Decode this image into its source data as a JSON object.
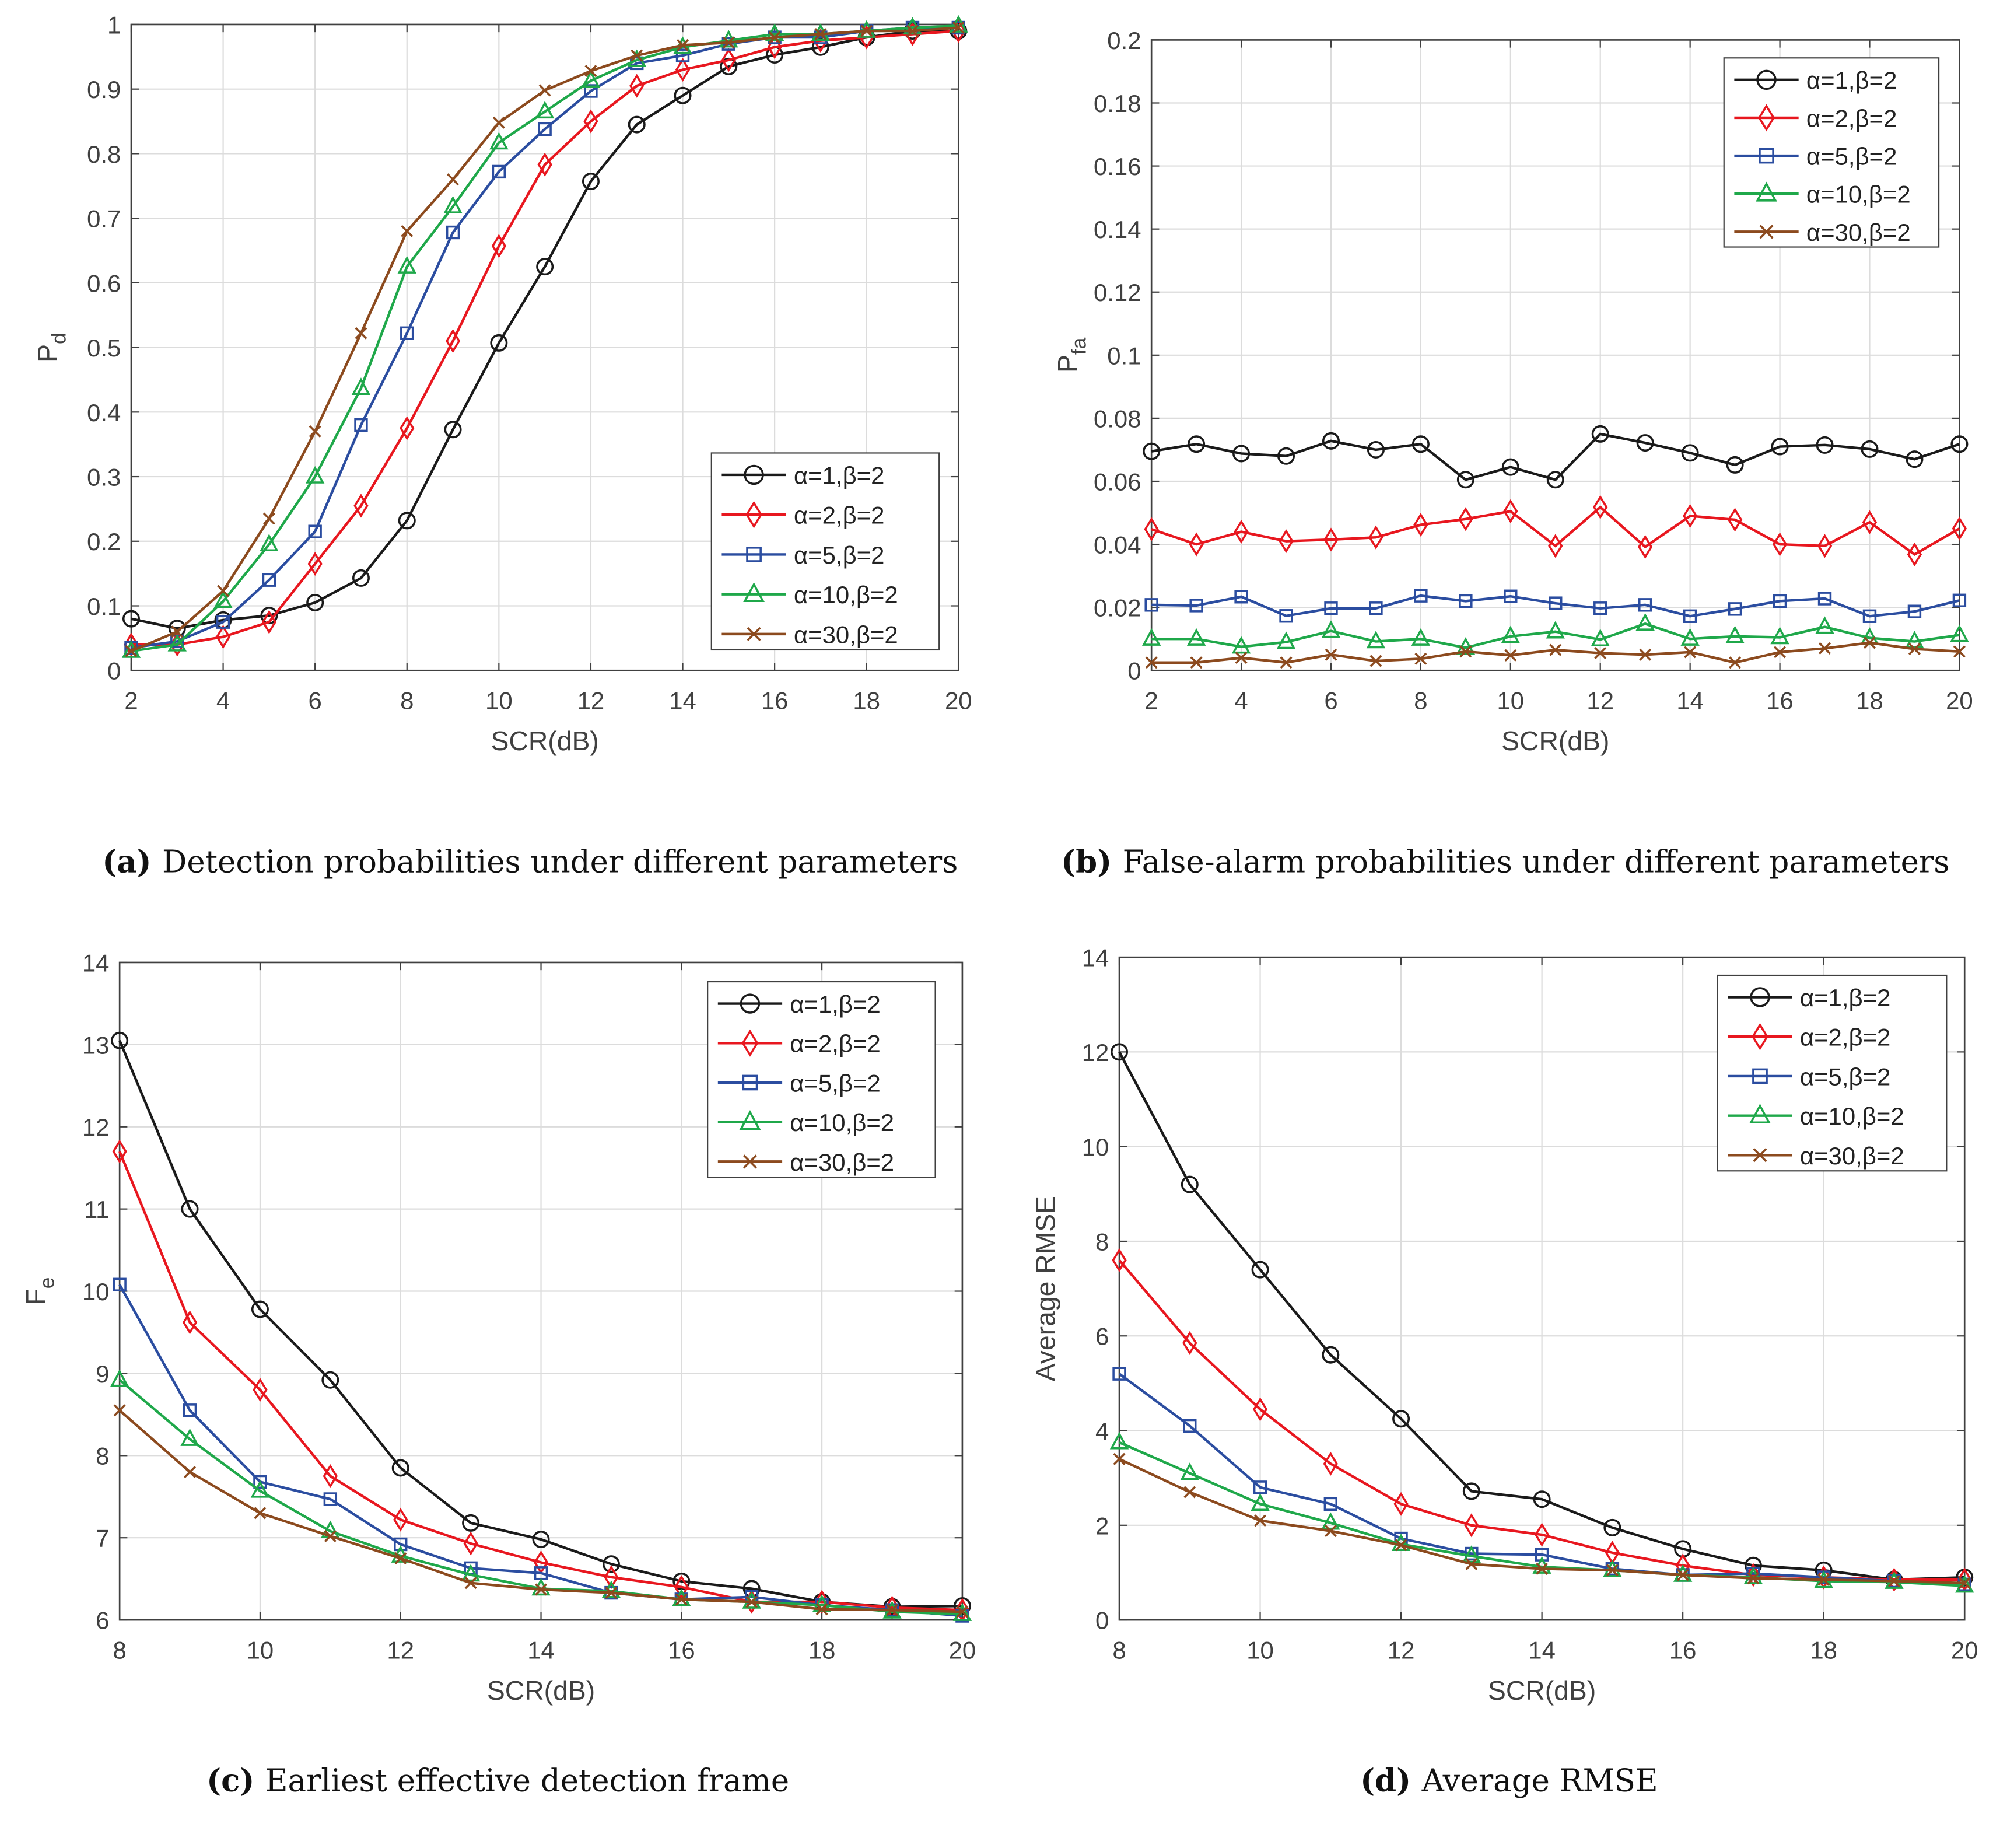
{
  "series_style": [
    {
      "name": "α=1,β=2",
      "color": "#1a1a1a",
      "marker": "circle"
    },
    {
      "name": "α=2,β=2",
      "color": "#e8171f",
      "marker": "diamond"
    },
    {
      "name": "α=5,β=2",
      "color": "#2b4da0",
      "marker": "square"
    },
    {
      "name": "α=10,β=2",
      "color": "#1fa84a",
      "marker": "triangle"
    },
    {
      "name": "α=30,β=2",
      "color": "#8c4a1e",
      "marker": "x"
    }
  ],
  "chart_data": [
    {
      "id": "a",
      "type": "line",
      "caption_label": "(a)",
      "caption": "Detection probabilities under different parameters",
      "xlabel": "SCR(dB)",
      "ylabel": "P",
      "ylabel_sub": "d",
      "xlim": [
        2,
        20
      ],
      "ylim": [
        0,
        1
      ],
      "grid": true,
      "legend": "bottom-right",
      "xticks": [
        "2",
        "4",
        "6",
        "8",
        "10",
        "12",
        "14",
        "16",
        "18",
        "20"
      ],
      "yticks": [
        "0",
        "0.1",
        "0.2",
        "0.3",
        "0.4",
        "0.5",
        "0.6",
        "0.7",
        "0.8",
        "0.9",
        "1"
      ],
      "x": [
        2,
        3,
        4,
        5,
        6,
        7,
        8,
        9,
        10,
        11,
        12,
        13,
        14,
        15,
        16,
        17,
        18,
        19,
        20
      ],
      "series": [
        {
          "name": "α=1,β=2",
          "values": [
            0.08,
            0.065,
            0.078,
            0.085,
            0.105,
            0.143,
            0.232,
            0.373,
            0.507,
            0.625,
            0.757,
            0.845,
            0.89,
            0.935,
            0.953,
            0.965,
            0.98,
            0.99,
            0.99
          ]
        },
        {
          "name": "α=2,β=2",
          "values": [
            0.04,
            0.04,
            0.052,
            0.075,
            0.165,
            0.255,
            0.375,
            0.51,
            0.657,
            0.783,
            0.85,
            0.905,
            0.93,
            0.945,
            0.965,
            0.975,
            0.98,
            0.985,
            0.99
          ]
        },
        {
          "name": "α=5,β=2",
          "values": [
            0.035,
            0.045,
            0.075,
            0.14,
            0.215,
            0.38,
            0.522,
            0.678,
            0.772,
            0.838,
            0.897,
            0.94,
            0.952,
            0.97,
            0.98,
            0.98,
            0.99,
            0.995,
            0.995
          ]
        },
        {
          "name": "α=10,β=2",
          "values": [
            0.03,
            0.04,
            0.107,
            0.195,
            0.3,
            0.437,
            0.625,
            0.718,
            0.817,
            0.865,
            0.913,
            0.945,
            0.965,
            0.975,
            0.985,
            0.985,
            0.99,
            0.995,
            0.998
          ]
        },
        {
          "name": "α=30,β=2",
          "values": [
            0.03,
            0.06,
            0.123,
            0.235,
            0.37,
            0.522,
            0.68,
            0.76,
            0.848,
            0.898,
            0.928,
            0.952,
            0.968,
            0.972,
            0.98,
            0.985,
            0.99,
            0.99,
            0.995
          ]
        }
      ]
    },
    {
      "id": "b",
      "type": "line",
      "caption_label": "(b)",
      "caption": "False-alarm probabilities under different parameters",
      "xlabel": "SCR(dB)",
      "ylabel": "P",
      "ylabel_sub": "fa",
      "xlim": [
        2,
        20
      ],
      "ylim": [
        0,
        0.2
      ],
      "grid": true,
      "legend": "top-right",
      "xticks": [
        "2",
        "4",
        "6",
        "8",
        "10",
        "12",
        "14",
        "16",
        "18",
        "20"
      ],
      "yticks": [
        "0",
        "0.02",
        "0.04",
        "0.06",
        "0.08",
        "0.1",
        "0.12",
        "0.14",
        "0.16",
        "0.18",
        "0.2"
      ],
      "x": [
        2,
        3,
        4,
        5,
        6,
        7,
        8,
        9,
        10,
        11,
        12,
        13,
        14,
        15,
        16,
        17,
        18,
        19,
        20
      ],
      "series": [
        {
          "name": "α=1,β=2",
          "values": [
            0.0695,
            0.0718,
            0.0688,
            0.068,
            0.0728,
            0.07,
            0.0718,
            0.0605,
            0.0645,
            0.0605,
            0.075,
            0.0722,
            0.069,
            0.0652,
            0.071,
            0.0715,
            0.0702,
            0.067,
            0.0718
          ]
        },
        {
          "name": "α=2,β=2",
          "values": [
            0.0448,
            0.04,
            0.044,
            0.041,
            0.0415,
            0.0422,
            0.0462,
            0.048,
            0.0505,
            0.0395,
            0.0518,
            0.0392,
            0.049,
            0.0478,
            0.04,
            0.0395,
            0.047,
            0.0368,
            0.045
          ]
        },
        {
          "name": "α=5,β=2",
          "values": [
            0.0208,
            0.0206,
            0.0234,
            0.0173,
            0.0197,
            0.0197,
            0.0237,
            0.022,
            0.0235,
            0.0213,
            0.0197,
            0.0208,
            0.0172,
            0.0195,
            0.022,
            0.0228,
            0.0172,
            0.0187,
            0.0222
          ]
        },
        {
          "name": "α=10,β=2",
          "values": [
            0.01,
            0.01,
            0.0075,
            0.009,
            0.0125,
            0.0092,
            0.01,
            0.0072,
            0.0108,
            0.0123,
            0.0098,
            0.0148,
            0.01,
            0.0108,
            0.0105,
            0.0138,
            0.0103,
            0.0092,
            0.0112
          ]
        },
        {
          "name": "α=30,β=2",
          "values": [
            0.0025,
            0.0025,
            0.004,
            0.0025,
            0.005,
            0.003,
            0.0037,
            0.006,
            0.0048,
            0.0065,
            0.0055,
            0.005,
            0.0058,
            0.0025,
            0.0058,
            0.007,
            0.0088,
            0.0068,
            0.006
          ]
        }
      ]
    },
    {
      "id": "c",
      "type": "line",
      "caption_label": "(c)",
      "caption": "Earliest effective detection frame",
      "xlabel": "SCR(dB)",
      "ylabel": "F",
      "ylabel_sub": "e",
      "xlim": [
        8,
        20
      ],
      "ylim": [
        6,
        14
      ],
      "grid": true,
      "legend": "top-right",
      "xticks": [
        "8",
        "10",
        "12",
        "14",
        "16",
        "18",
        "20"
      ],
      "yticks": [
        "6",
        "7",
        "8",
        "9",
        "10",
        "11",
        "12",
        "13",
        "14"
      ],
      "x": [
        8,
        9,
        10,
        11,
        12,
        13,
        14,
        15,
        16,
        17,
        18,
        19,
        20
      ],
      "series": [
        {
          "name": "α=1,β=2",
          "values": [
            13.05,
            11.0,
            9.78,
            8.92,
            7.85,
            7.18,
            6.98,
            6.68,
            6.47,
            6.38,
            6.22,
            6.16,
            6.17
          ]
        },
        {
          "name": "α=2,β=2",
          "values": [
            11.7,
            9.62,
            8.8,
            7.75,
            7.22,
            6.93,
            6.7,
            6.52,
            6.4,
            6.22,
            6.22,
            6.15,
            6.12
          ]
        },
        {
          "name": "α=5,β=2",
          "values": [
            10.08,
            8.55,
            7.68,
            7.47,
            6.92,
            6.63,
            6.57,
            6.33,
            6.25,
            6.28,
            6.18,
            6.12,
            6.05
          ]
        },
        {
          "name": "α=10,β=2",
          "values": [
            8.92,
            8.2,
            7.57,
            7.08,
            6.78,
            6.55,
            6.38,
            6.35,
            6.25,
            6.22,
            6.18,
            6.1,
            6.07
          ]
        },
        {
          "name": "α=30,β=2",
          "values": [
            8.55,
            7.8,
            7.3,
            7.02,
            6.75,
            6.45,
            6.37,
            6.33,
            6.25,
            6.22,
            6.13,
            6.12,
            6.1
          ]
        }
      ]
    },
    {
      "id": "d",
      "type": "line",
      "caption_label": "(d)",
      "caption": "Average RMSE",
      "xlabel": "SCR(dB)",
      "ylabel": "Average RMSE",
      "ylabel_sub": "",
      "xlim": [
        8,
        20
      ],
      "ylim": [
        0,
        14
      ],
      "grid": true,
      "legend": "top-right",
      "xticks": [
        "8",
        "10",
        "12",
        "14",
        "16",
        "18",
        "20"
      ],
      "yticks": [
        "0",
        "2",
        "4",
        "6",
        "8",
        "10",
        "12",
        "14"
      ],
      "x": [
        8,
        9,
        10,
        11,
        12,
        13,
        14,
        15,
        16,
        17,
        18,
        19,
        20
      ],
      "series": [
        {
          "name": "α=1,β=2",
          "values": [
            12.0,
            9.2,
            7.4,
            5.6,
            4.25,
            2.72,
            2.55,
            1.95,
            1.5,
            1.15,
            1.05,
            0.85,
            0.9
          ]
        },
        {
          "name": "α=2,β=2",
          "values": [
            7.6,
            5.85,
            4.45,
            3.3,
            2.45,
            2.0,
            1.8,
            1.42,
            1.15,
            0.95,
            0.9,
            0.85,
            0.85
          ]
        },
        {
          "name": "α=5,β=2",
          "values": [
            5.2,
            4.1,
            2.8,
            2.45,
            1.72,
            1.4,
            1.38,
            1.08,
            0.95,
            0.98,
            0.9,
            0.82,
            0.75
          ]
        },
        {
          "name": "α=10,β=2",
          "values": [
            3.75,
            3.1,
            2.45,
            2.05,
            1.6,
            1.35,
            1.12,
            1.05,
            0.95,
            0.9,
            0.82,
            0.8,
            0.72
          ]
        },
        {
          "name": "α=30,β=2",
          "values": [
            3.4,
            2.7,
            2.1,
            1.88,
            1.58,
            1.18,
            1.08,
            1.05,
            0.95,
            0.88,
            0.85,
            0.82,
            0.78
          ]
        }
      ]
    }
  ]
}
